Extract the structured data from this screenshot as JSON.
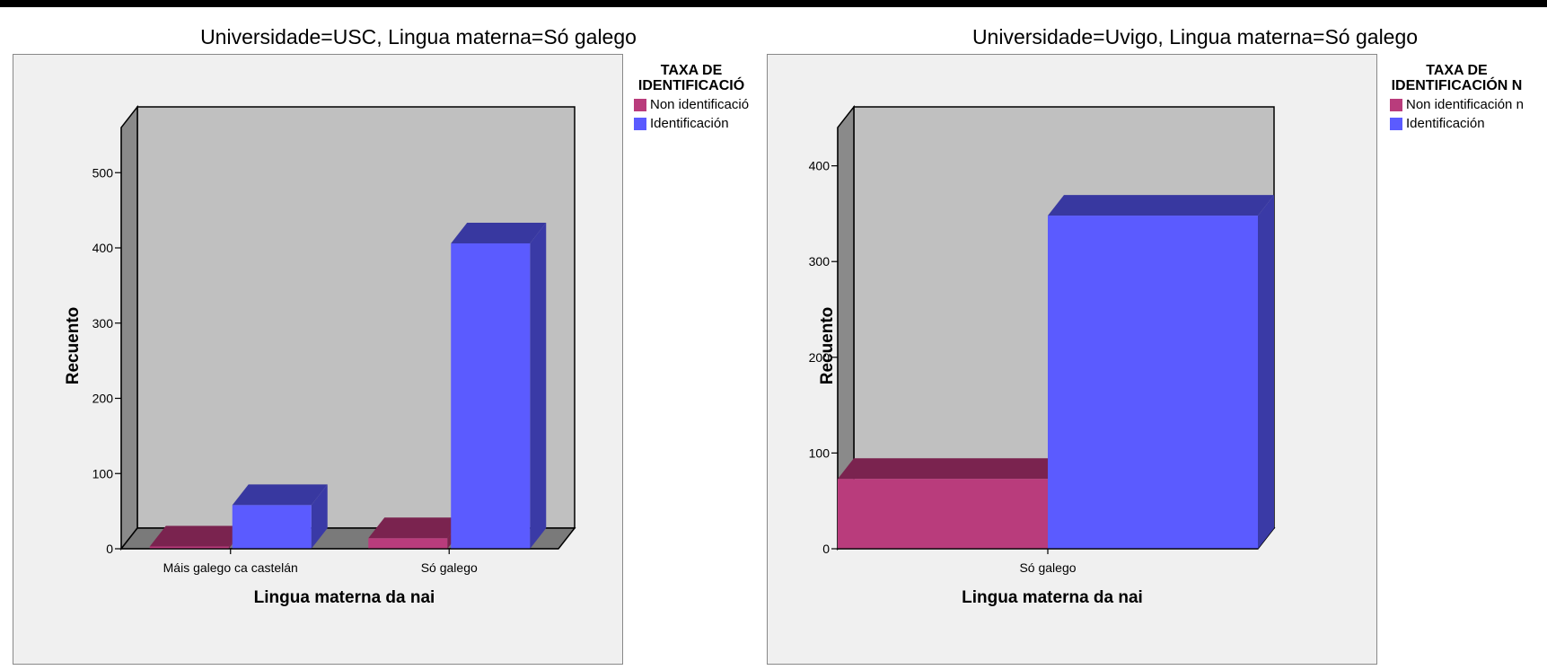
{
  "colors": {
    "frame_bg": "#f0f0f0",
    "plot_bg": "#c0c0c0",
    "side_wall": "#8a8a8a",
    "floor": "#7a7a7a",
    "non_front": "#b93c7c",
    "non_top": "#7a234f",
    "ident_front": "#5b5bff",
    "ident_side": "#3a3aa6",
    "ident_top": "#3838a0"
  },
  "chart_data": [
    {
      "type": "bar",
      "title": "Universidade=USC, Lingua materna=Só galego",
      "xlabel": "Lingua materna da nai",
      "ylabel": "Recuento",
      "categories": [
        "Máis galego ca castelán",
        "Só galego"
      ],
      "ylim": [
        0,
        560
      ],
      "yticks": [
        "0",
        "100",
        "200",
        "300",
        "400",
        "500"
      ],
      "legend_title": "TAXA DE\nIDENTIFICACIÓ",
      "series": [
        {
          "name": "Non identificació",
          "values": [
            3,
            14
          ]
        },
        {
          "name": "Identificación",
          "values": [
            58,
            406
          ]
        }
      ]
    },
    {
      "type": "bar",
      "title": "Universidade=Uvigo, Lingua materna=Só galego",
      "xlabel": "Lingua materna da nai",
      "ylabel": "Recuento",
      "categories": [
        "Só galego"
      ],
      "ylim": [
        0,
        440
      ],
      "yticks": [
        "0",
        "100",
        "200",
        "300",
        "400"
      ],
      "legend_title": "TAXA DE\nIDENTIFICACIÓN N",
      "series": [
        {
          "name": "Non identificación  n",
          "values": [
            73
          ]
        },
        {
          "name": "Identificación",
          "values": [
            348
          ]
        }
      ]
    }
  ]
}
